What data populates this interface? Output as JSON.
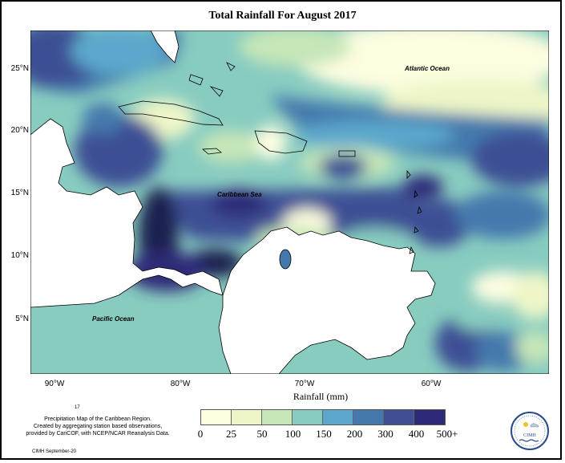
{
  "title": "Total Rainfall For August 2017",
  "lat_ticks": [
    "25°N",
    "20°N",
    "15°N",
    "10°N",
    "5°N"
  ],
  "lon_ticks": [
    "90°W",
    "80°W",
    "70°W",
    "60°W"
  ],
  "ocean_labels": {
    "atlantic": "Atlantic Ocean",
    "caribbean": "Caribbean Sea",
    "pacific": "Pacific Ocean"
  },
  "legend": {
    "title": "Rainfall (mm)",
    "labels": [
      "0",
      "25",
      "50",
      "100",
      "150",
      "200",
      "300",
      "400",
      "500+"
    ],
    "colors": [
      "#fdfde0",
      "#eef6c8",
      "#c6e6b8",
      "#88ccc0",
      "#5ba8cc",
      "#4579ad",
      "#3e4f94",
      "#2e2a78",
      "#1d2450"
    ]
  },
  "caption_lines": [
    "Precipitation Map of the Caribbean Region.",
    "Created by aggregating station based observations,",
    "provided by CariCOF, with NCEP/NCAR Reanalysis Data."
  ],
  "page_number": "17",
  "credit": "CIMH September-20",
  "logo_text": "CIMH"
}
